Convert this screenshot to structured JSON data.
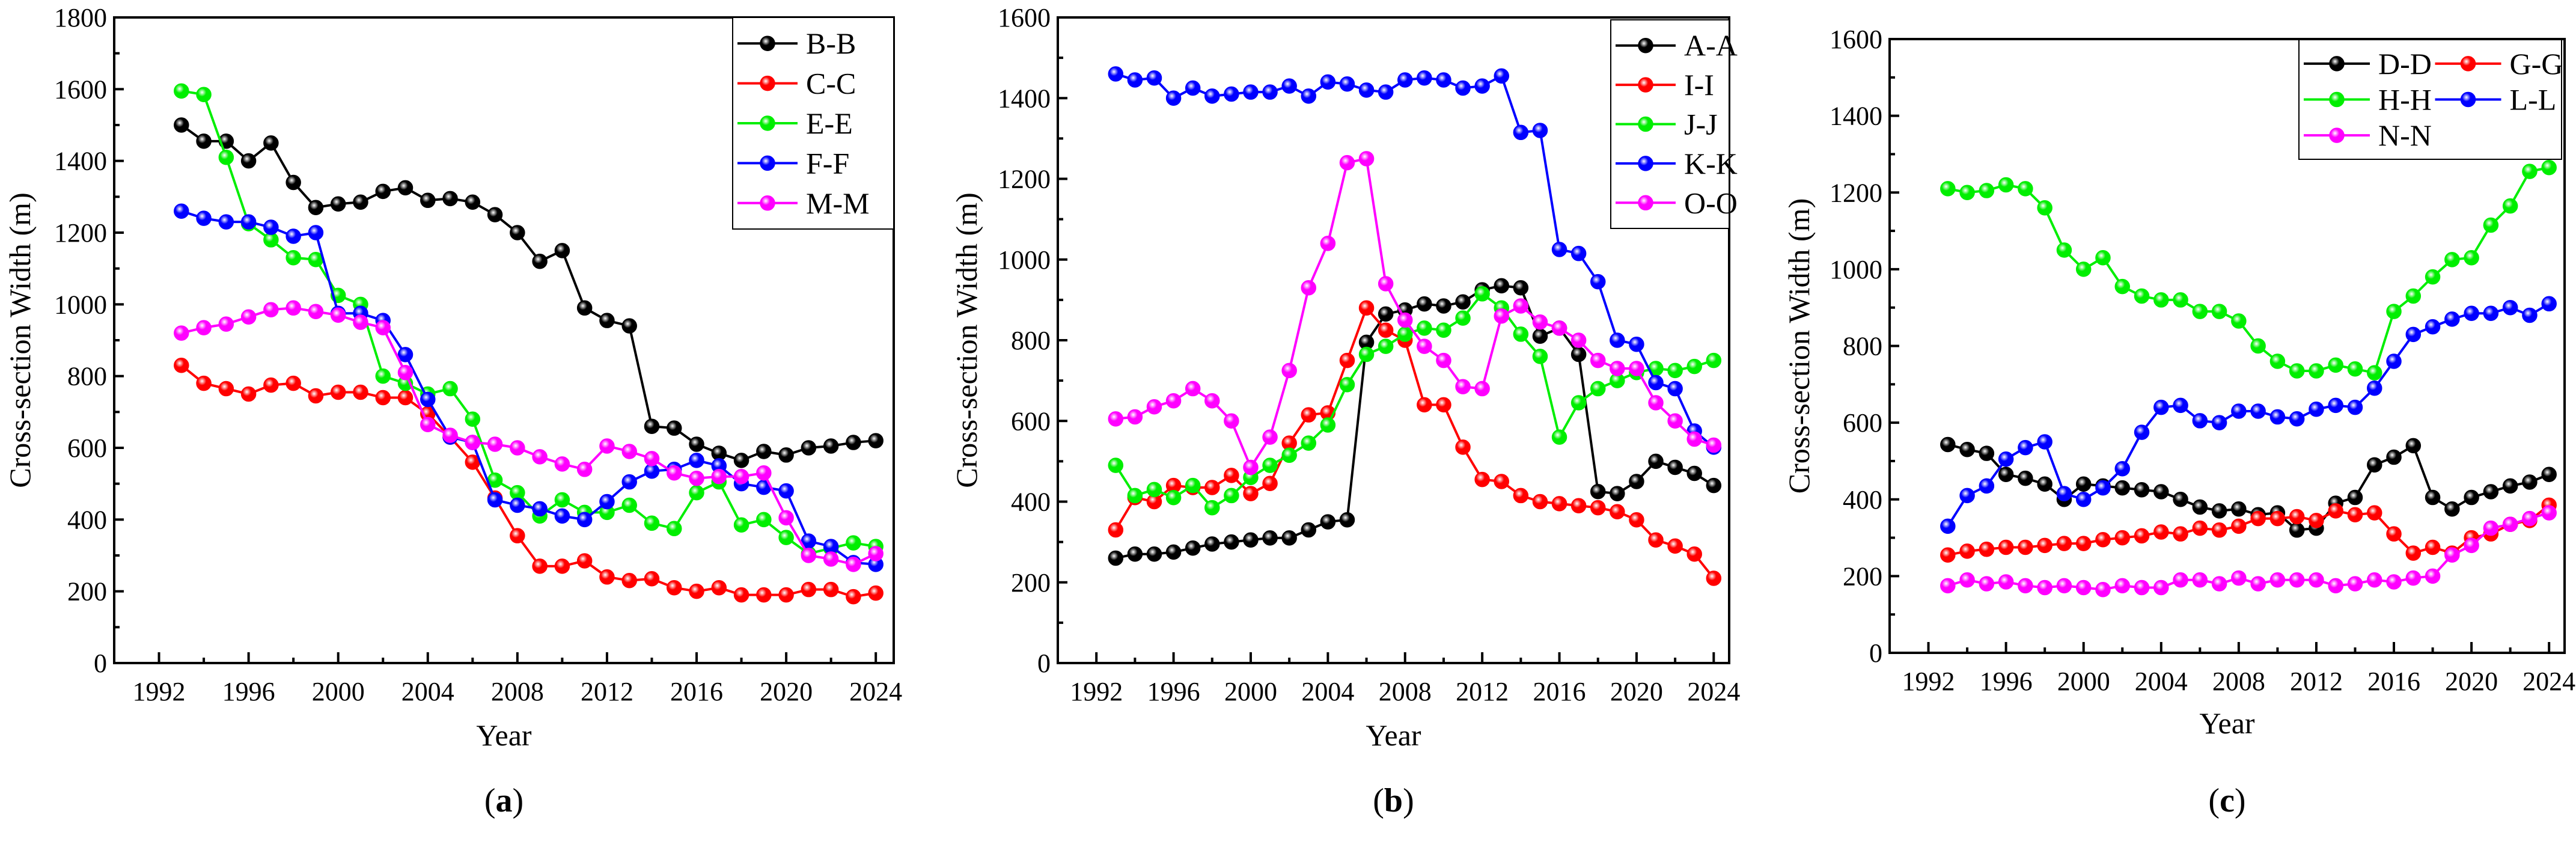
{
  "chart_data": [
    {
      "type": "line",
      "panel_label": "a",
      "xlabel": "Year",
      "ylabel": "Cross-section Width (m)",
      "xlim": [
        1990,
        2024.8
      ],
      "ylim": [
        0,
        1800
      ],
      "xticks": [
        1992,
        1996,
        2000,
        2004,
        2008,
        2012,
        2016,
        2020,
        2024
      ],
      "yticks": [
        0,
        200,
        400,
        600,
        800,
        1000,
        1200,
        1400,
        1600,
        1800
      ],
      "legend_position": "top-right",
      "legend_columns": 1,
      "years": [
        1993,
        1994,
        1995,
        1996,
        1997,
        1998,
        1999,
        2000,
        2001,
        2002,
        2003,
        2004,
        2005,
        2006,
        2007,
        2008,
        2009,
        2010,
        2011,
        2012,
        2013,
        2014,
        2015,
        2016,
        2017,
        2018,
        2019,
        2020,
        2021,
        2022,
        2023,
        2024
      ],
      "series": [
        {
          "name": "B-B",
          "color": "#000000",
          "values": [
            1500,
            1455,
            1455,
            1400,
            1450,
            1340,
            1270,
            1280,
            1285,
            1315,
            1325,
            1290,
            1295,
            1285,
            1250,
            1200,
            1120,
            1150,
            990,
            955,
            940,
            660,
            655,
            610,
            585,
            565,
            590,
            580,
            600,
            605,
            615,
            620
          ]
        },
        {
          "name": "C-C",
          "color": "#ff0000",
          "values": [
            830,
            780,
            765,
            750,
            775,
            780,
            745,
            755,
            755,
            740,
            740,
            695,
            630,
            560,
            460,
            355,
            270,
            270,
            285,
            240,
            230,
            235,
            210,
            200,
            210,
            190,
            190,
            190,
            205,
            205,
            185,
            195
          ]
        },
        {
          "name": "E-E",
          "color": "#00ee00",
          "values": [
            1595,
            1585,
            1410,
            1225,
            1180,
            1130,
            1125,
            1025,
            1000,
            800,
            780,
            750,
            765,
            680,
            510,
            475,
            410,
            455,
            420,
            420,
            440,
            390,
            375,
            475,
            505,
            385,
            400,
            350,
            305,
            320,
            335,
            325
          ]
        },
        {
          "name": "F-F",
          "color": "#0000ff",
          "values": [
            1260,
            1240,
            1230,
            1230,
            1215,
            1190,
            1200,
            975,
            975,
            955,
            860,
            735,
            630,
            615,
            455,
            440,
            430,
            410,
            400,
            450,
            505,
            535,
            540,
            565,
            550,
            500,
            490,
            480,
            340,
            325,
            280,
            275
          ]
        },
        {
          "name": "M-M",
          "color": "#ff00ff",
          "values": [
            920,
            935,
            945,
            965,
            985,
            990,
            980,
            970,
            950,
            935,
            810,
            665,
            635,
            615,
            610,
            600,
            575,
            555,
            540,
            605,
            590,
            570,
            530,
            515,
            520,
            520,
            530,
            405,
            300,
            290,
            275,
            305
          ]
        }
      ]
    },
    {
      "type": "line",
      "panel_label": "b",
      "xlabel": "Year",
      "ylabel": "Cross-section Width (m)",
      "xlim": [
        1990,
        2024.8
      ],
      "ylim": [
        0,
        1600
      ],
      "xticks": [
        1992,
        1996,
        2000,
        2004,
        2008,
        2012,
        2016,
        2020,
        2024
      ],
      "yticks": [
        0,
        200,
        400,
        600,
        800,
        1000,
        1200,
        1400,
        1600
      ],
      "legend_position": "top-right",
      "legend_columns": 1,
      "years": [
        1993,
        1994,
        1995,
        1996,
        1997,
        1998,
        1999,
        2000,
        2001,
        2002,
        2003,
        2004,
        2005,
        2006,
        2007,
        2008,
        2009,
        2010,
        2011,
        2012,
        2013,
        2014,
        2015,
        2016,
        2017,
        2018,
        2019,
        2020,
        2021,
        2022,
        2023,
        2024
      ],
      "series": [
        {
          "name": "A-A",
          "color": "#000000",
          "values": [
            260,
            270,
            270,
            275,
            285,
            295,
            300,
            305,
            310,
            310,
            330,
            350,
            355,
            795,
            865,
            875,
            890,
            885,
            895,
            925,
            935,
            930,
            810,
            830,
            765,
            425,
            420,
            450,
            500,
            485,
            470,
            440
          ]
        },
        {
          "name": "I-I",
          "color": "#ff0000",
          "values": [
            330,
            410,
            400,
            440,
            435,
            435,
            465,
            420,
            445,
            545,
            615,
            620,
            750,
            880,
            825,
            800,
            640,
            640,
            535,
            455,
            450,
            415,
            400,
            395,
            390,
            385,
            375,
            355,
            305,
            290,
            270,
            210
          ]
        },
        {
          "name": "J-J",
          "color": "#00ee00",
          "values": [
            490,
            415,
            430,
            410,
            440,
            385,
            415,
            460,
            490,
            515,
            545,
            590,
            690,
            765,
            785,
            815,
            830,
            825,
            855,
            915,
            880,
            815,
            760,
            560,
            645,
            680,
            700,
            720,
            730,
            725,
            735,
            750
          ]
        },
        {
          "name": "K-K",
          "color": "#0000ff",
          "values": [
            1460,
            1445,
            1450,
            1400,
            1425,
            1405,
            1410,
            1415,
            1415,
            1430,
            1405,
            1440,
            1435,
            1420,
            1415,
            1445,
            1450,
            1445,
            1425,
            1430,
            1455,
            1315,
            1320,
            1025,
            1015,
            945,
            800,
            790,
            695,
            680,
            575,
            535
          ]
        },
        {
          "name": "O-O",
          "color": "#ff00ff",
          "values": [
            605,
            610,
            635,
            650,
            680,
            650,
            600,
            485,
            560,
            725,
            930,
            1040,
            1240,
            1250,
            940,
            850,
            785,
            750,
            685,
            680,
            860,
            885,
            845,
            830,
            800,
            750,
            730,
            730,
            645,
            600,
            555,
            540
          ]
        }
      ]
    },
    {
      "type": "line",
      "panel_label": "c",
      "xlabel": "Year",
      "ylabel": "Cross-section Width (m)",
      "xlim": [
        1990,
        2024.8
      ],
      "ylim": [
        0,
        1600
      ],
      "xticks": [
        1992,
        1996,
        2000,
        2004,
        2008,
        2012,
        2016,
        2020,
        2024
      ],
      "yticks": [
        0,
        200,
        400,
        600,
        800,
        1000,
        1200,
        1400,
        1600
      ],
      "legend_position": "top-right",
      "legend_columns": 2,
      "years": [
        1993,
        1994,
        1995,
        1996,
        1997,
        1998,
        1999,
        2000,
        2001,
        2002,
        2003,
        2004,
        2005,
        2006,
        2007,
        2008,
        2009,
        2010,
        2011,
        2012,
        2013,
        2014,
        2015,
        2016,
        2017,
        2018,
        2019,
        2020,
        2021,
        2022,
        2023,
        2024
      ],
      "series": [
        {
          "name": "D-D",
          "color": "#000000",
          "values": [
            543,
            530,
            520,
            465,
            455,
            440,
            400,
            440,
            435,
            430,
            425,
            420,
            400,
            380,
            370,
            375,
            360,
            365,
            320,
            325,
            390,
            405,
            490,
            510,
            540,
            405,
            375,
            405,
            420,
            435,
            445,
            465
          ]
        },
        {
          "name": "G-G",
          "color": "#ff0000",
          "values": [
            255,
            265,
            270,
            275,
            275,
            280,
            285,
            285,
            295,
            300,
            305,
            315,
            310,
            325,
            320,
            330,
            350,
            350,
            355,
            345,
            370,
            360,
            365,
            310,
            260,
            275,
            260,
            300,
            310,
            335,
            345,
            385
          ]
        },
        {
          "name": "H-H",
          "color": "#00ee00",
          "values": [
            1210,
            1200,
            1205,
            1220,
            1210,
            1160,
            1050,
            1000,
            1030,
            955,
            930,
            920,
            920,
            890,
            890,
            865,
            800,
            760,
            735,
            735,
            750,
            740,
            730,
            890,
            930,
            980,
            1025,
            1030,
            1115,
            1165,
            1255,
            1265
          ]
        },
        {
          "name": "L-L",
          "color": "#0000ff",
          "values": [
            330,
            410,
            435,
            505,
            535,
            550,
            415,
            400,
            430,
            480,
            575,
            640,
            645,
            605,
            600,
            630,
            630,
            615,
            610,
            635,
            645,
            640,
            690,
            760,
            830,
            850,
            870,
            885,
            885,
            900,
            880,
            910
          ]
        },
        {
          "name": "N-N",
          "color": "#ff00ff",
          "values": [
            175,
            190,
            180,
            185,
            175,
            170,
            175,
            170,
            165,
            175,
            170,
            170,
            190,
            190,
            180,
            195,
            180,
            190,
            190,
            190,
            175,
            180,
            190,
            185,
            195,
            200,
            255,
            280,
            325,
            335,
            350,
            365
          ]
        }
      ]
    }
  ]
}
